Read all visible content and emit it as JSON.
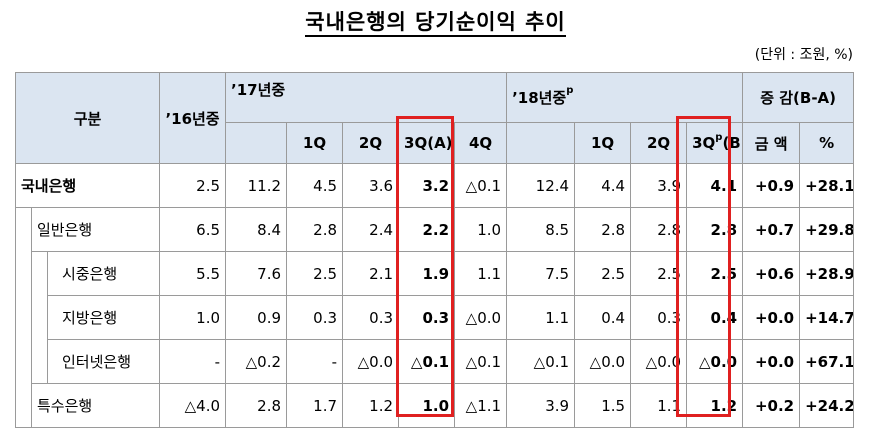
{
  "title": "국내은행의 당기순이익 추이",
  "unit": "(단위 : 조원, %)",
  "header": {
    "category": "구분",
    "y16": "’16년중",
    "y17": "’17년중",
    "y17_q": [
      "1Q",
      "2Q",
      "3Q(A)",
      "4Q"
    ],
    "y18": "’18년중",
    "y18_sup": "p",
    "y18_q1": "1Q",
    "y18_q2": "2Q",
    "y18_q3_pre": "3Q",
    "y18_q3_sup": "p",
    "y18_q3_post": "(B)",
    "change": "증 감(B-A)",
    "amount": "금 액",
    "percent": "%"
  },
  "rows": [
    {
      "label": "국내은행",
      "y16": "2.5",
      "y17": "11.2",
      "q1": "4.5",
      "q2": "3.6",
      "q3": "3.2",
      "q4": "△0.1",
      "y18": "12.4",
      "r1": "4.4",
      "r2": "3.9",
      "r3": "4.1",
      "amt": "+0.9",
      "pct": "+28.1"
    },
    {
      "label": "일반은행",
      "y16": "6.5",
      "y17": "8.4",
      "q1": "2.8",
      "q2": "2.4",
      "q3": "2.2",
      "q4": "1.0",
      "y18": "8.5",
      "r1": "2.8",
      "r2": "2.8",
      "r3": "2.8",
      "amt": "+0.7",
      "pct": "+29.8"
    },
    {
      "label": "시중은행",
      "y16": "5.5",
      "y17": "7.6",
      "q1": "2.5",
      "q2": "2.1",
      "q3": "1.9",
      "q4": "1.1",
      "y18": "7.5",
      "r1": "2.5",
      "r2": "2.5",
      "r3": "2.5",
      "amt": "+0.6",
      "pct": "+28.9"
    },
    {
      "label": "지방은행",
      "y16": "1.0",
      "y17": "0.9",
      "q1": "0.3",
      "q2": "0.3",
      "q3": "0.3",
      "q4": "△0.0",
      "y18": "1.1",
      "r1": "0.4",
      "r2": "0.3",
      "r3": "0.4",
      "amt": "+0.0",
      "pct": "+14.7"
    },
    {
      "label": "인터넷은행",
      "y16": "-",
      "y17": "△0.2",
      "q1": "-",
      "q2": "△0.0",
      "q3": "△0.1",
      "q4": "△0.1",
      "y18": "△0.1",
      "r1": "△0.0",
      "r2": "△0.0",
      "r3": "△0.0",
      "amt": "+0.0",
      "pct": "+67.1"
    },
    {
      "label": "특수은행",
      "y16": "△4.0",
      "y17": "2.8",
      "q1": "1.7",
      "q2": "1.2",
      "q3": "1.0",
      "q4": "△1.1",
      "y18": "3.9",
      "r1": "1.5",
      "r2": "1.1",
      "r3": "1.2",
      "amt": "+0.2",
      "pct": "+24.2"
    }
  ]
}
